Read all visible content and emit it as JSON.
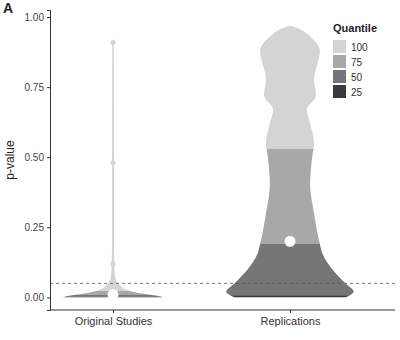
{
  "chart_data": {
    "type": "violin",
    "title": "A",
    "categories": [
      "Original Studies",
      "Replications"
    ],
    "ylabel": "p-value",
    "ylim": [
      -0.045,
      1.025
    ],
    "yticks": [
      {
        "value": 0,
        "label": "0.00"
      },
      {
        "value": 0.25,
        "label": "0.25"
      },
      {
        "value": 0.5,
        "label": "0.50"
      },
      {
        "value": 0.75,
        "label": "0.75"
      },
      {
        "value": 1,
        "label": "1.00"
      }
    ],
    "grid": false,
    "legend": "top-right",
    "legend_title": "Quantile",
    "quantiles": [
      {
        "name": "100",
        "color": "#d4d4d4"
      },
      {
        "name": "75",
        "color": "#a8a8a8"
      },
      {
        "name": "50",
        "color": "#767676"
      },
      {
        "name": "25",
        "color": "#3a3a3a"
      }
    ],
    "hline": {
      "value": 0.05,
      "line_style": "dashed"
    },
    "violins": [
      {
        "y": [
          0,
          0.005,
          0.01,
          0.02,
          0.03,
          0.04,
          0.05,
          0.06,
          0.08,
          0.12,
          0.2,
          0.5,
          0.91
        ],
        "width": [
          0.77,
          0.69,
          0.54,
          0.31,
          0.18,
          0.12,
          0.08,
          0.05,
          0.03,
          0.02,
          0.015,
          0.015,
          0.012
        ],
        "quantile_values": [
          0.91,
          0.023,
          0.01,
          0.002
        ],
        "mean": 0.01,
        "points": [
          0.91,
          0.48,
          0.12
        ]
      },
      {
        "y": [
          0,
          0.02,
          0.05,
          0.1,
          0.15,
          0.2,
          0.3,
          0.4,
          0.5,
          0.55,
          0.62,
          0.67,
          0.72,
          0.78,
          0.84,
          0.88,
          0.93,
          0.96,
          0.97
        ],
        "width": [
          0.85,
          0.98,
          0.85,
          0.65,
          0.51,
          0.45,
          0.37,
          0.31,
          0.34,
          0.37,
          0.31,
          0.26,
          0.4,
          0.37,
          0.43,
          0.46,
          0.31,
          0.12,
          0
        ],
        "quantile_values": [
          0.97,
          0.53,
          0.19,
          0.008
        ],
        "mean": 0.2,
        "points": []
      }
    ]
  }
}
